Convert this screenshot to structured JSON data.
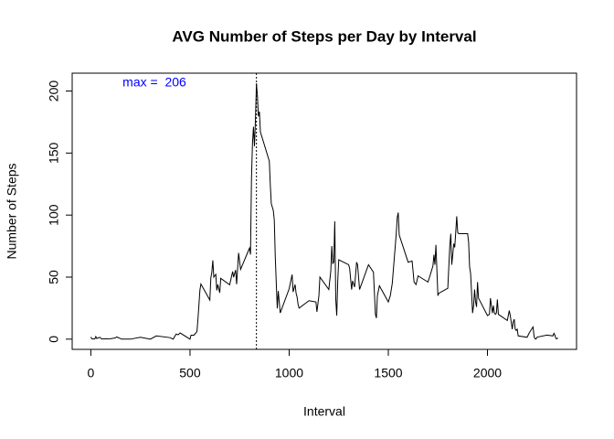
{
  "chart_data": {
    "type": "line",
    "title": "AVG Number of Steps per Day by Interval",
    "x_label": "Interval",
    "y_label": "Number of Steps",
    "annotation": "max =  206",
    "annotation_color": "#0000ff",
    "vline": 835,
    "color": "#000000",
    "x": [
      0,
      5,
      10,
      20,
      25,
      30,
      45,
      55,
      100,
      125,
      130,
      155,
      200,
      250,
      300,
      330,
      400,
      415,
      430,
      440,
      450,
      500,
      505,
      520,
      535,
      540,
      550,
      555,
      600,
      605,
      610,
      615,
      620,
      630,
      635,
      640,
      650,
      655,
      700,
      715,
      720,
      730,
      735,
      745,
      755,
      800,
      805,
      810,
      815,
      820,
      825,
      830,
      835,
      840,
      845,
      850,
      855,
      900,
      905,
      910,
      920,
      925,
      930,
      935,
      940,
      945,
      955,
      1000,
      1015,
      1020,
      1030,
      1035,
      1040,
      1045,
      1050,
      1100,
      1135,
      1140,
      1150,
      1155,
      1200,
      1210,
      1215,
      1220,
      1225,
      1230,
      1235,
      1240,
      1245,
      1250,
      1300,
      1305,
      1315,
      1320,
      1330,
      1340,
      1345,
      1350,
      1355,
      1400,
      1425,
      1435,
      1440,
      1445,
      1455,
      1500,
      1510,
      1520,
      1540,
      1545,
      1550,
      1555,
      1600,
      1620,
      1630,
      1640,
      1650,
      1700,
      1710,
      1725,
      1730,
      1735,
      1740,
      1745,
      1750,
      1755,
      1800,
      1805,
      1810,
      1815,
      1820,
      1825,
      1830,
      1835,
      1840,
      1845,
      1850,
      1855,
      1900,
      1905,
      1910,
      1915,
      1920,
      1925,
      1930,
      1935,
      1940,
      1945,
      1950,
      1955,
      2000,
      2010,
      2015,
      2020,
      2025,
      2030,
      2035,
      2040,
      2045,
      2050,
      2055,
      2100,
      2110,
      2115,
      2125,
      2130,
      2135,
      2140,
      2145,
      2150,
      2155,
      2200,
      2210,
      2225,
      2230,
      2235,
      2240,
      2245,
      2250,
      2300,
      2330,
      2335,
      2340,
      2345,
      2350,
      2355
    ],
    "values": [
      1.7,
      0.3,
      0.1,
      0.1,
      2.1,
      0.5,
      1.5,
      0.1,
      0.3,
      1.1,
      1.8,
      0,
      0,
      1.5,
      0,
      2.6,
      1.2,
      0,
      4.1,
      3.5,
      5,
      0,
      3.2,
      3.2,
      6.1,
      16,
      39.5,
      44.5,
      31.5,
      49.3,
      53.8,
      63.5,
      50,
      52.2,
      39.3,
      44,
      37.4,
      49,
      43.8,
      54.5,
      49.9,
      55.7,
      44.3,
      69.5,
      56.2,
      73.4,
      68.2,
      129.4,
      157.5,
      171.2,
      155.4,
      177.3,
      206.2,
      195.9,
      179.6,
      183.4,
      167,
      143.5,
      124,
      109.1,
      103.7,
      96,
      66.2,
      45.2,
      24.8,
      38.8,
      21.1,
      40.6,
      52,
      38,
      44,
      37,
      34,
      28,
      25,
      31,
      30,
      22,
      35,
      50,
      40,
      55,
      75,
      61,
      62,
      95,
      32,
      19,
      47,
      64,
      60,
      57,
      40,
      47,
      42,
      62,
      60,
      50,
      40,
      60,
      54,
      20,
      17,
      35,
      43,
      30,
      35,
      45,
      85,
      98,
      102,
      84,
      62,
      63,
      46,
      44,
      51,
      46,
      51,
      59,
      68,
      60,
      76,
      56,
      35,
      37,
      41,
      58,
      75,
      85,
      60,
      68,
      77,
      74,
      86,
      99,
      86,
      85,
      85,
      78,
      58,
      53,
      37,
      21,
      27,
      40,
      30,
      26,
      46,
      33,
      19,
      20,
      33,
      27,
      21,
      27,
      21,
      20,
      21,
      32,
      20,
      15,
      23,
      19,
      8,
      14,
      16,
      8,
      7,
      8,
      2.6,
      1.5,
      4.8,
      8.7,
      9.8,
      2.2,
      0.3,
      0.1,
      1.6,
      3.3,
      2.6,
      4.7,
      3.3,
      0.6,
      0.2,
      1.1
    ],
    "xlim": [
      -94.2,
      2449.2
    ],
    "xticks": [
      0,
      500,
      1000,
      1500,
      2000
    ],
    "ylim": [
      -8.25,
      214.4
    ],
    "yticks": [
      0,
      50,
      100,
      150,
      200
    ]
  }
}
